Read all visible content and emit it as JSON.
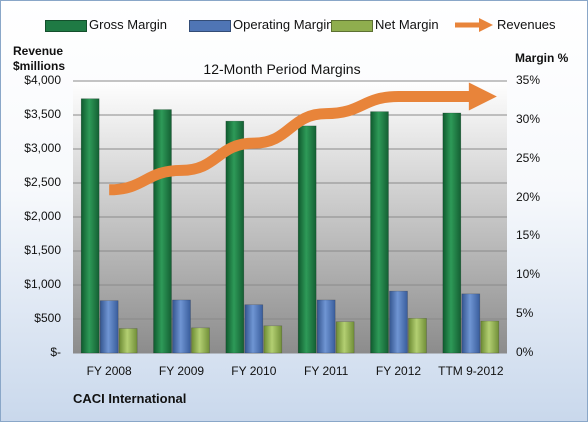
{
  "colors": {
    "gross_margin": "#1f7a44",
    "operating_margin": "#4f75b5",
    "net_margin": "#8fae4e",
    "revenues": "#e8843a"
  },
  "chart_data": {
    "type": "bar",
    "title": "12-Month Period Margins",
    "left_axis_label": [
      "Revenue",
      "$millions"
    ],
    "right_axis_label": "Margin %",
    "categories": [
      "FY 2008",
      "FY 2009",
      "FY 2010",
      "FY 2011",
      "FY 2012",
      "TTM 9-2012"
    ],
    "left_ticks": [
      "$-",
      "$500",
      "$1,000",
      "$1,500",
      "$2,000",
      "$2,500",
      "$3,000",
      "$3,500",
      "$4,000"
    ],
    "right_ticks": [
      "0%",
      "5%",
      "10%",
      "15%",
      "20%",
      "25%",
      "30%",
      "35%"
    ],
    "left_ylim": [
      0,
      4000
    ],
    "right_ylim": [
      0,
      35
    ],
    "series": [
      {
        "name": "Gross Margin",
        "axis": "left",
        "values": [
          3740,
          3580,
          3410,
          3340,
          3550,
          3530
        ]
      },
      {
        "name": "Operating Margin",
        "axis": "left",
        "values": [
          770,
          780,
          710,
          780,
          910,
          870
        ]
      },
      {
        "name": "Net Margin",
        "axis": "left",
        "values": [
          360,
          370,
          400,
          460,
          510,
          470
        ]
      },
      {
        "name": "Revenues",
        "axis": "right",
        "type": "line-arrow",
        "values": [
          21.0,
          23.5,
          27.0,
          30.8,
          33.0,
          33.0
        ]
      }
    ],
    "legend_position": "top",
    "grid": true
  },
  "footer": {
    "company": "CACI International"
  }
}
